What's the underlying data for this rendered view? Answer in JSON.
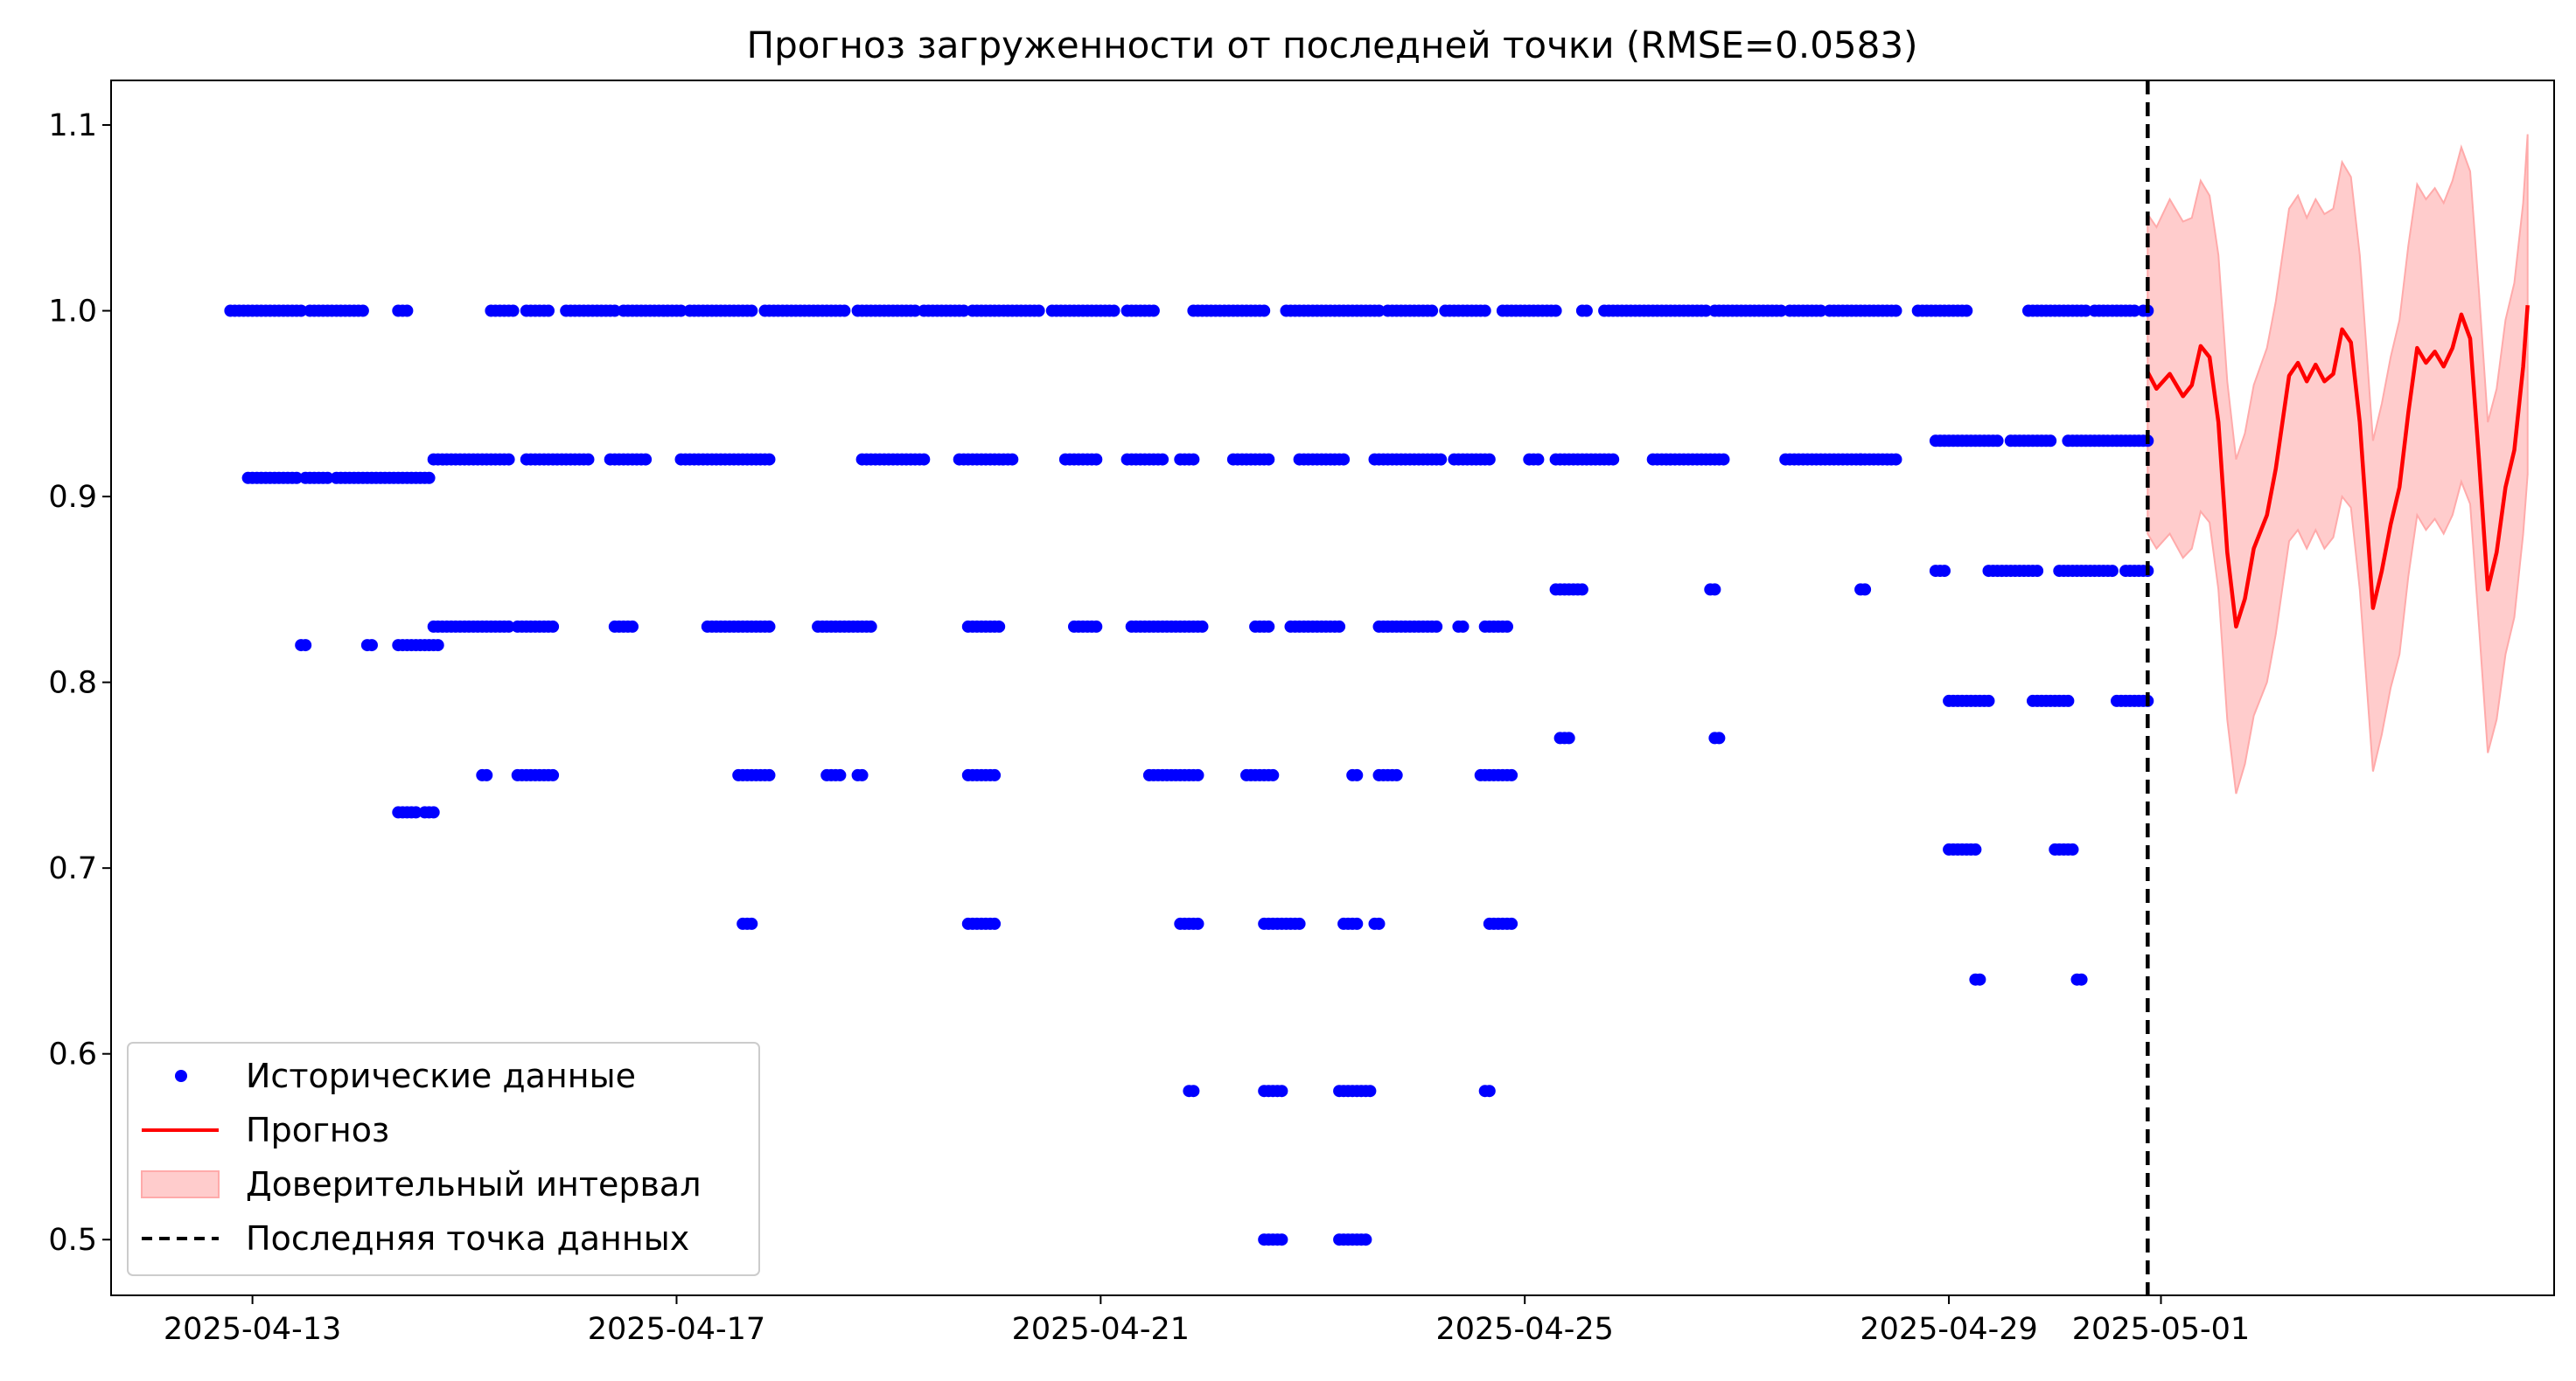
{
  "chart_data": {
    "type": "scatter",
    "title": "Прогноз загруженности от последней точки (RMSE=0.0583)",
    "xlabel": "",
    "ylabel": "",
    "xlim": [
      "2025-04-11T16:00",
      "2025-05-04T17:00"
    ],
    "ylim": [
      0.47,
      1.124
    ],
    "x_ticks": [
      "2025-04-13",
      "2025-04-17",
      "2025-04-21",
      "2025-04-25",
      "2025-04-29",
      "2025-05-01"
    ],
    "y_ticks": [
      0.5,
      0.6,
      0.7,
      0.8,
      0.9,
      1.0,
      1.1
    ],
    "y_tick_labels": [
      "0.5",
      "0.6",
      "0.7",
      "0.8",
      "0.9",
      "1.0",
      "1.1"
    ],
    "grid": false,
    "legend_position": "lower-left",
    "last_point": "2025-04-30T21:00",
    "colors": {
      "historical": "#0000ff",
      "forecast": "#ff0000",
      "interval": "#ffcccc",
      "interval_edge": "#ffaaaa",
      "last_point_line": "#000000"
    },
    "legend": [
      {
        "label": "Исторические данные",
        "kind": "marker"
      },
      {
        "label": "Прогноз",
        "kind": "line"
      },
      {
        "label": "Доверительный интервал",
        "kind": "patch"
      },
      {
        "label": "Последняя точка данных",
        "kind": "dashed"
      }
    ],
    "historical_series": {
      "name": "Исторические данные",
      "levels": [
        {
          "y": 1.0,
          "segments": [
            [
              "2025-04-12T19:00",
              "2025-04-13T11:30"
            ],
            [
              "2025-04-13T13:00",
              "2025-04-14T01:00"
            ],
            [
              "2025-04-14T09:00",
              "2025-04-14T11:00"
            ],
            [
              "2025-04-15T06:00",
              "2025-04-15T11:00"
            ],
            [
              "2025-04-15T14:00",
              "2025-04-15T19:00"
            ],
            [
              "2025-04-15T23:00",
              "2025-04-16T10:00"
            ],
            [
              "2025-04-16T12:00",
              "2025-04-17T01:00"
            ],
            [
              "2025-04-17T03:00",
              "2025-04-17T17:00"
            ],
            [
              "2025-04-17T20:00",
              "2025-04-18T14:00"
            ],
            [
              "2025-04-18T17:00",
              "2025-04-19T06:00"
            ],
            [
              "2025-04-19T08:00",
              "2025-04-19T17:00"
            ],
            [
              "2025-04-19T19:00",
              "2025-04-20T10:00"
            ],
            [
              "2025-04-20T13:00",
              "2025-04-21T03:00"
            ],
            [
              "2025-04-21T06:00",
              "2025-04-21T12:00"
            ],
            [
              "2025-04-21T21:00",
              "2025-04-22T13:00"
            ],
            [
              "2025-04-22T18:00",
              "2025-04-23T15:00"
            ],
            [
              "2025-04-23T17:00",
              "2025-04-24T03:00"
            ],
            [
              "2025-04-24T06:00",
              "2025-04-24T15:00"
            ],
            [
              "2025-04-24T19:00",
              "2025-04-25T07:00"
            ],
            [
              "2025-04-25T13:00",
              "2025-04-25T14:00"
            ],
            [
              "2025-04-25T18:00",
              "2025-04-26T17:00"
            ],
            [
              "2025-04-26T19:00",
              "2025-04-27T10:00"
            ],
            [
              "2025-04-27T12:00",
              "2025-04-27T19:00"
            ],
            [
              "2025-04-27T21:00",
              "2025-04-28T12:00"
            ],
            [
              "2025-04-28T17:00",
              "2025-04-29T04:00"
            ],
            [
              "2025-04-29T18:00",
              "2025-04-30T07:00"
            ],
            [
              "2025-04-30T09:00",
              "2025-04-30T18:00"
            ],
            [
              "2025-04-30T20:00",
              "2025-04-30T21:00"
            ]
          ]
        },
        {
          "y": 0.93,
          "segments": [
            [
              "2025-04-28T21:00",
              "2025-04-29T11:00"
            ],
            [
              "2025-04-29T14:00",
              "2025-04-29T23:00"
            ],
            [
              "2025-04-30T03:00",
              "2025-04-30T21:00"
            ]
          ]
        },
        {
          "y": 0.92,
          "segments": [
            [
              "2025-04-14T17:00",
              "2025-04-15T10:00"
            ],
            [
              "2025-04-15T14:00",
              "2025-04-16T04:00"
            ],
            [
              "2025-04-16T09:00",
              "2025-04-16T17:00"
            ],
            [
              "2025-04-17T01:00",
              "2025-04-17T12:00"
            ],
            [
              "2025-04-17T13:00",
              "2025-04-17T21:00"
            ],
            [
              "2025-04-18T18:00",
              "2025-04-19T08:00"
            ],
            [
              "2025-04-19T16:00",
              "2025-04-20T04:00"
            ],
            [
              "2025-04-20T16:00",
              "2025-04-20T23:00"
            ],
            [
              "2025-04-21T06:00",
              "2025-04-21T14:00"
            ],
            [
              "2025-04-21T18:00",
              "2025-04-21T21:00"
            ],
            [
              "2025-04-22T06:00",
              "2025-04-22T14:00"
            ],
            [
              "2025-04-22T21:00",
              "2025-04-23T07:00"
            ],
            [
              "2025-04-23T14:00",
              "2025-04-24T05:00"
            ],
            [
              "2025-04-24T08:00",
              "2025-04-24T16:00"
            ],
            [
              "2025-04-25T01:00",
              "2025-04-25T03:00"
            ],
            [
              "2025-04-25T07:00",
              "2025-04-25T20:00"
            ],
            [
              "2025-04-26T05:00",
              "2025-04-26T21:00"
            ],
            [
              "2025-04-27T11:00",
              "2025-04-28T04:00"
            ],
            [
              "2025-04-28T04:00",
              "2025-04-28T12:00"
            ]
          ]
        },
        {
          "y": 0.91,
          "segments": [
            [
              "2025-04-12T23:00",
              "2025-04-13T10:00"
            ],
            [
              "2025-04-13T12:00",
              "2025-04-13T17:00"
            ],
            [
              "2025-04-13T19:00",
              "2025-04-14T16:00"
            ]
          ]
        },
        {
          "y": 0.86,
          "segments": [
            [
              "2025-04-28T21:00",
              "2025-04-28T23:00"
            ],
            [
              "2025-04-29T09:00",
              "2025-04-29T20:00"
            ],
            [
              "2025-04-30T01:00",
              "2025-04-30T05:00"
            ],
            [
              "2025-04-30T06:00",
              "2025-04-30T13:00"
            ],
            [
              "2025-04-30T16:00",
              "2025-04-30T21:00"
            ]
          ]
        },
        {
          "y": 0.85,
          "segments": [
            [
              "2025-04-25T07:00",
              "2025-04-25T13:00"
            ],
            [
              "2025-04-26T18:00",
              "2025-04-26T19:00"
            ],
            [
              "2025-04-28T04:00",
              "2025-04-28T05:00"
            ]
          ]
        },
        {
          "y": 0.83,
          "segments": [
            [
              "2025-04-14T17:00",
              "2025-04-15T10:00"
            ],
            [
              "2025-04-15T12:00",
              "2025-04-15T20:00"
            ],
            [
              "2025-04-16T10:00",
              "2025-04-16T14:00"
            ],
            [
              "2025-04-17T07:00",
              "2025-04-17T21:00"
            ],
            [
              "2025-04-18T08:00",
              "2025-04-18T20:00"
            ],
            [
              "2025-04-19T18:00",
              "2025-04-20T01:00"
            ],
            [
              "2025-04-20T18:00",
              "2025-04-20T23:00"
            ],
            [
              "2025-04-21T07:00",
              "2025-04-21T23:00"
            ],
            [
              "2025-04-22T11:00",
              "2025-04-22T14:00"
            ],
            [
              "2025-04-22T19:00",
              "2025-04-23T06:00"
            ],
            [
              "2025-04-23T15:00",
              "2025-04-24T04:00"
            ],
            [
              "2025-04-24T09:00",
              "2025-04-24T10:00"
            ],
            [
              "2025-04-24T15:00",
              "2025-04-24T20:00"
            ]
          ]
        },
        {
          "y": 0.82,
          "segments": [
            [
              "2025-04-13T11:00",
              "2025-04-13T12:00"
            ],
            [
              "2025-04-14T02:00",
              "2025-04-14T03:00"
            ],
            [
              "2025-04-14T09:00",
              "2025-04-14T18:00"
            ]
          ]
        },
        {
          "y": 0.79,
          "segments": [
            [
              "2025-04-29T00:00",
              "2025-04-29T09:00"
            ],
            [
              "2025-04-29T19:00",
              "2025-04-30T03:00"
            ],
            [
              "2025-04-30T14:00",
              "2025-04-30T21:00"
            ]
          ]
        },
        {
          "y": 0.77,
          "segments": [
            [
              "2025-04-25T08:00",
              "2025-04-25T10:00"
            ],
            [
              "2025-04-26T19:00",
              "2025-04-26T20:00"
            ]
          ]
        },
        {
          "y": 0.75,
          "segments": [
            [
              "2025-04-15T04:00",
              "2025-04-15T05:00"
            ],
            [
              "2025-04-15T12:00",
              "2025-04-15T20:00"
            ],
            [
              "2025-04-17T14:00",
              "2025-04-17T21:00"
            ],
            [
              "2025-04-18T10:00",
              "2025-04-18T13:00"
            ],
            [
              "2025-04-18T17:00",
              "2025-04-18T18:00"
            ],
            [
              "2025-04-19T18:00",
              "2025-04-20T00:00"
            ],
            [
              "2025-04-21T11:00",
              "2025-04-21T22:00"
            ],
            [
              "2025-04-22T09:00",
              "2025-04-22T15:00"
            ],
            [
              "2025-04-23T09:00",
              "2025-04-23T10:00"
            ],
            [
              "2025-04-23T15:00",
              "2025-04-23T19:00"
            ],
            [
              "2025-04-24T14:00",
              "2025-04-24T21:00"
            ]
          ]
        },
        {
          "y": 0.73,
          "segments": [
            [
              "2025-04-14T09:00",
              "2025-04-14T13:00"
            ],
            [
              "2025-04-14T15:00",
              "2025-04-14T17:00"
            ]
          ]
        },
        {
          "y": 0.71,
          "segments": [
            [
              "2025-04-29T00:00",
              "2025-04-29T06:00"
            ],
            [
              "2025-04-30T00:00",
              "2025-04-30T04:00"
            ]
          ]
        },
        {
          "y": 0.67,
          "segments": [
            [
              "2025-04-17T15:00",
              "2025-04-17T17:00"
            ],
            [
              "2025-04-19T18:00",
              "2025-04-20T00:00"
            ],
            [
              "2025-04-21T18:00",
              "2025-04-21T22:00"
            ],
            [
              "2025-04-22T13:00",
              "2025-04-22T15:00"
            ],
            [
              "2025-04-22T16:00",
              "2025-04-22T21:00"
            ],
            [
              "2025-04-23T07:00",
              "2025-04-23T10:00"
            ],
            [
              "2025-04-23T14:00",
              "2025-04-23T15:00"
            ],
            [
              "2025-04-24T16:00",
              "2025-04-24T21:00"
            ]
          ]
        },
        {
          "y": 0.64,
          "segments": [
            [
              "2025-04-29T06:00",
              "2025-04-29T07:00"
            ],
            [
              "2025-04-30T05:00",
              "2025-04-30T06:00"
            ]
          ]
        },
        {
          "y": 0.58,
          "segments": [
            [
              "2025-04-21T20:00",
              "2025-04-21T21:00"
            ],
            [
              "2025-04-22T13:00",
              "2025-04-22T17:00"
            ],
            [
              "2025-04-23T06:00",
              "2025-04-23T13:00"
            ],
            [
              "2025-04-24T15:00",
              "2025-04-24T16:00"
            ]
          ]
        },
        {
          "y": 0.5,
          "segments": [
            [
              "2025-04-22T13:00",
              "2025-04-22T17:00"
            ],
            [
              "2025-04-23T06:00",
              "2025-04-23T12:00"
            ]
          ]
        }
      ]
    },
    "forecast_series": {
      "name": "Прогноз",
      "points": [
        [
          "2025-04-30T21:00",
          0.967
        ],
        [
          "2025-04-30T23:00",
          0.958
        ],
        [
          "2025-05-01T02:00",
          0.966
        ],
        [
          "2025-05-01T05:00",
          0.954
        ],
        [
          "2025-05-01T07:00",
          0.96
        ],
        [
          "2025-05-01T09:00",
          0.981
        ],
        [
          "2025-05-01T11:00",
          0.975
        ],
        [
          "2025-05-01T13:00",
          0.94
        ],
        [
          "2025-05-01T15:00",
          0.87
        ],
        [
          "2025-05-01T17:00",
          0.83
        ],
        [
          "2025-05-01T19:00",
          0.845
        ],
        [
          "2025-05-01T21:00",
          0.872
        ],
        [
          "2025-05-02T00:00",
          0.89
        ],
        [
          "2025-05-02T02:00",
          0.915
        ],
        [
          "2025-05-02T05:00",
          0.965
        ],
        [
          "2025-05-02T07:00",
          0.972
        ],
        [
          "2025-05-02T09:00",
          0.962
        ],
        [
          "2025-05-02T11:00",
          0.971
        ],
        [
          "2025-05-02T13:00",
          0.962
        ],
        [
          "2025-05-02T15:00",
          0.966
        ],
        [
          "2025-05-02T17:00",
          0.99
        ],
        [
          "2025-05-02T19:00",
          0.983
        ],
        [
          "2025-05-02T21:00",
          0.94
        ],
        [
          "2025-05-03T00:00",
          0.84
        ],
        [
          "2025-05-03T02:00",
          0.86
        ],
        [
          "2025-05-03T04:00",
          0.885
        ],
        [
          "2025-05-03T06:00",
          0.905
        ],
        [
          "2025-05-03T08:00",
          0.945
        ],
        [
          "2025-05-03T10:00",
          0.98
        ],
        [
          "2025-05-03T12:00",
          0.972
        ],
        [
          "2025-05-03T14:00",
          0.978
        ],
        [
          "2025-05-03T16:00",
          0.97
        ],
        [
          "2025-05-03T18:00",
          0.98
        ],
        [
          "2025-05-03T20:00",
          0.998
        ],
        [
          "2025-05-03T22:00",
          0.985
        ],
        [
          "2025-05-04T00:00",
          0.92
        ],
        [
          "2025-05-04T02:00",
          0.85
        ],
        [
          "2025-05-04T04:00",
          0.87
        ],
        [
          "2025-05-04T06:00",
          0.905
        ],
        [
          "2025-05-04T08:00",
          0.925
        ],
        [
          "2025-05-04T10:00",
          0.97
        ],
        [
          "2025-05-04T11:00",
          1.003
        ]
      ]
    },
    "interval_series": {
      "name": "Доверительный интервал",
      "upper": [
        1.052,
        1.045,
        1.06,
        1.048,
        1.05,
        1.07,
        1.062,
        1.03,
        0.962,
        0.92,
        0.934,
        0.96,
        0.98,
        1.005,
        1.055,
        1.062,
        1.05,
        1.06,
        1.052,
        1.055,
        1.08,
        1.072,
        1.03,
        0.93,
        0.95,
        0.975,
        0.995,
        1.035,
        1.068,
        1.06,
        1.066,
        1.058,
        1.07,
        1.088,
        1.075,
        1.01,
        0.94,
        0.958,
        0.995,
        1.015,
        1.058,
        1.095
      ],
      "lower": [
        0.88,
        0.872,
        0.88,
        0.867,
        0.872,
        0.892,
        0.886,
        0.85,
        0.78,
        0.74,
        0.756,
        0.782,
        0.8,
        0.826,
        0.876,
        0.882,
        0.872,
        0.882,
        0.872,
        0.878,
        0.9,
        0.894,
        0.85,
        0.752,
        0.772,
        0.797,
        0.815,
        0.857,
        0.89,
        0.882,
        0.888,
        0.88,
        0.89,
        0.908,
        0.896,
        0.83,
        0.762,
        0.78,
        0.815,
        0.835,
        0.88,
        0.912
      ]
    }
  }
}
